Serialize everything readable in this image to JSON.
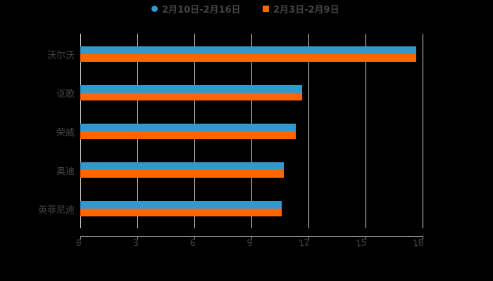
{
  "chart_data": {
    "type": "bar",
    "orientation": "horizontal",
    "title": "",
    "categories": [
      "沃尔沃",
      "讴歌",
      "荣威",
      "奥迪",
      "英菲尼迪"
    ],
    "series": [
      {
        "name": "2月10日-2月16日",
        "color": "#3399CC",
        "values": [
          17.67,
          11.67,
          11.33,
          10.7,
          10.6
        ]
      },
      {
        "name": "2月3日-2月9日",
        "color": "#FF6600",
        "values": [
          17.67,
          11.67,
          11.33,
          10.7,
          10.6
        ]
      }
    ],
    "xlabel": "",
    "ylabel": "",
    "xlim": [
      0,
      18
    ],
    "xticks": [
      "0",
      "3",
      "6",
      "9",
      "12",
      "15",
      "18"
    ],
    "grid": true,
    "legend_position": "top"
  },
  "legend": {
    "items": [
      {
        "label": "2月10日-2月16日",
        "color": "#3399CC",
        "marker": "circle"
      },
      {
        "label": "2月3日-2月9日",
        "color": "#FF6600",
        "marker": "square"
      }
    ]
  }
}
